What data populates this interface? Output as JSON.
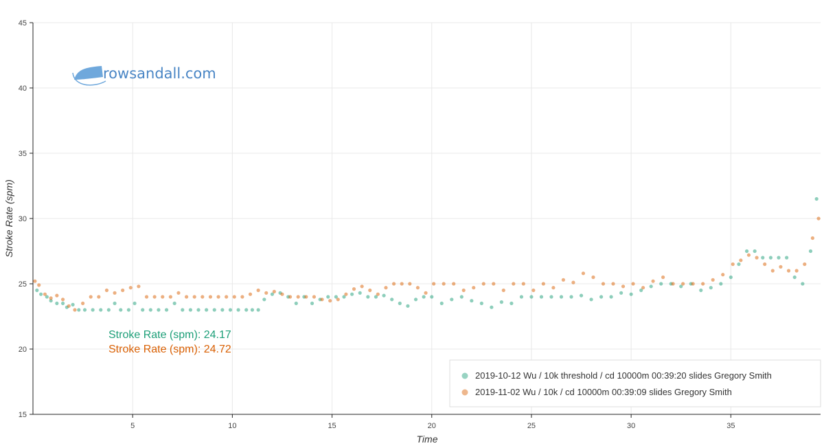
{
  "logo": {
    "brand": "rows",
    "middle": "and",
    "suffix": "all.com"
  },
  "stats": [
    {
      "label": "Stroke Rate (spm):",
      "value": "24.17",
      "color": "#1b9e77"
    },
    {
      "label": "Stroke Rate (spm):",
      "value": "24.72",
      "color": "#d95f02"
    }
  ],
  "chart_data": {
    "type": "scatter",
    "xlabel": "Time",
    "ylabel": "Stroke Rate (spm)",
    "xlim": [
      0,
      39.5
    ],
    "ylim": [
      15,
      45
    ],
    "x_ticks": [
      5,
      10,
      15,
      20,
      25,
      30,
      35
    ],
    "y_ticks": [
      15,
      20,
      25,
      30,
      35,
      40,
      45
    ],
    "grid": true,
    "legend_position": "bottom-right",
    "series": [
      {
        "name": "2019-10-12 Wu / 10k threshold / cd 10000m 00:39:20 slides Gregory Smith",
        "color": "#1b9e77",
        "x": [
          0.2,
          0.4,
          0.7,
          0.9,
          1.2,
          1.5,
          1.7,
          2,
          2.3,
          2.6,
          3,
          3.4,
          3.8,
          4.1,
          4.4,
          4.8,
          5.1,
          5.5,
          5.9,
          6.3,
          6.7,
          7.1,
          7.5,
          7.9,
          8.3,
          8.7,
          9.1,
          9.5,
          9.9,
          10.3,
          10.7,
          11,
          11.3,
          11.6,
          12,
          12.4,
          12.8,
          13.2,
          13.6,
          14,
          14.4,
          14.8,
          15.2,
          15.6,
          16,
          16.4,
          16.8,
          17.2,
          17.6,
          18,
          18.4,
          18.8,
          19.2,
          19.6,
          20,
          20.5,
          21,
          21.5,
          22,
          22.5,
          23,
          23.5,
          24,
          24.5,
          25,
          25.5,
          26,
          26.5,
          27,
          27.5,
          28,
          28.5,
          29,
          29.5,
          30,
          30.5,
          31,
          31.5,
          32,
          32.5,
          33,
          33.5,
          34,
          34.5,
          35,
          35.4,
          35.8,
          36.2,
          36.6,
          37,
          37.4,
          37.8,
          38.2,
          38.6,
          39,
          39.3
        ],
        "y": [
          24.5,
          24.2,
          24,
          23.7,
          23.5,
          23.5,
          23.2,
          23.4,
          23,
          23,
          23,
          23,
          23,
          23.5,
          23,
          23,
          23.5,
          23,
          23,
          23,
          23,
          23.5,
          23,
          23,
          23,
          23,
          23,
          23,
          23,
          23,
          23,
          23,
          23,
          23.8,
          24.2,
          24.3,
          24,
          23.5,
          24,
          23.5,
          23.8,
          24,
          24,
          24,
          24.2,
          24.3,
          24,
          24,
          24.1,
          23.8,
          23.5,
          23.3,
          23.8,
          24,
          24,
          23.5,
          23.8,
          24,
          23.7,
          23.5,
          23.2,
          23.6,
          23.5,
          24,
          24,
          24,
          24,
          24,
          24,
          24.1,
          23.8,
          24,
          24,
          24.3,
          24.2,
          24.5,
          24.8,
          25,
          25,
          24.8,
          25,
          24.5,
          24.7,
          25,
          25.5,
          26.5,
          27.5,
          27.5,
          27,
          27,
          27,
          27,
          25.5,
          25,
          27.5,
          31.5
        ],
        "mean": 24.17
      },
      {
        "name": "2019-11-02 Wu / 10k / cd 10000m 00:39:09 slides Gregory Smith",
        "color": "#d95f02",
        "x": [
          0.1,
          0.3,
          0.6,
          0.9,
          1.2,
          1.5,
          1.8,
          2.1,
          2.5,
          2.9,
          3.3,
          3.7,
          4.1,
          4.5,
          4.9,
          5.3,
          5.7,
          6.1,
          6.5,
          6.9,
          7.3,
          7.7,
          8.1,
          8.5,
          8.9,
          9.3,
          9.7,
          10.1,
          10.5,
          10.9,
          11.3,
          11.7,
          12.1,
          12.5,
          12.9,
          13.3,
          13.7,
          14.1,
          14.5,
          14.9,
          15.3,
          15.7,
          16.1,
          16.5,
          16.9,
          17.3,
          17.7,
          18.1,
          18.5,
          18.9,
          19.3,
          19.7,
          20.1,
          20.6,
          21.1,
          21.6,
          22.1,
          22.6,
          23.1,
          23.6,
          24.1,
          24.6,
          25.1,
          25.6,
          26.1,
          26.6,
          27.1,
          27.6,
          28.1,
          28.6,
          29.1,
          29.6,
          30.1,
          30.6,
          31.1,
          31.6,
          32.1,
          32.6,
          33.1,
          33.6,
          34.1,
          34.6,
          35.1,
          35.5,
          35.9,
          36.3,
          36.7,
          37.1,
          37.5,
          37.9,
          38.3,
          38.7,
          39.1,
          39.4
        ],
        "y": [
          25.2,
          24.9,
          24.2,
          23.9,
          24.1,
          23.8,
          23.3,
          23,
          23.5,
          24,
          24,
          24.5,
          24.3,
          24.5,
          24.7,
          24.8,
          24,
          24,
          24,
          24,
          24.3,
          24,
          24,
          24,
          24,
          24,
          24,
          24,
          24,
          24.2,
          24.5,
          24.3,
          24.4,
          24.2,
          24,
          24,
          24,
          24,
          23.8,
          23.7,
          23.8,
          24.2,
          24.6,
          24.8,
          24.5,
          24.2,
          24.7,
          25,
          25,
          25,
          24.7,
          24.3,
          25,
          25,
          25,
          24.5,
          24.7,
          25,
          25,
          24.5,
          25,
          25,
          24.5,
          25,
          24.7,
          25.3,
          25.1,
          25.8,
          25.5,
          25,
          25,
          24.8,
          25,
          24.7,
          25.2,
          25.5,
          25,
          25,
          25,
          25,
          25.3,
          25.7,
          26.5,
          26.8,
          27.2,
          27,
          26.5,
          26,
          26.3,
          26,
          26,
          26.5,
          28.5,
          30
        ],
        "mean": 24.72
      }
    ]
  }
}
